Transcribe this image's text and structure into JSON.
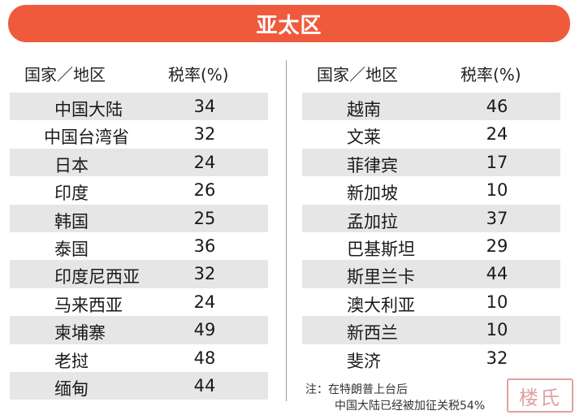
{
  "banner": {
    "title": "亚太区"
  },
  "table_headers": {
    "country": "国家／地区",
    "rate": "税率(%)"
  },
  "left_rows": [
    {
      "country": "中国大陆",
      "rate": "34"
    },
    {
      "country": "中国台湾省",
      "rate": "32"
    },
    {
      "country": "日本",
      "rate": "24"
    },
    {
      "country": "印度",
      "rate": "26"
    },
    {
      "country": "韩国",
      "rate": "25"
    },
    {
      "country": "泰国",
      "rate": "36"
    },
    {
      "country": "印度尼西亚",
      "rate": "32"
    },
    {
      "country": "马来西亚",
      "rate": "24"
    },
    {
      "country": "柬埔寨",
      "rate": "49"
    },
    {
      "country": "老挝",
      "rate": "48"
    },
    {
      "country": "缅甸",
      "rate": "44"
    }
  ],
  "right_rows": [
    {
      "country": "越南",
      "rate": "46"
    },
    {
      "country": "文莱",
      "rate": "24"
    },
    {
      "country": "菲律宾",
      "rate": "17"
    },
    {
      "country": "新加坡",
      "rate": "10"
    },
    {
      "country": "孟加拉",
      "rate": "37"
    },
    {
      "country": "巴基斯坦",
      "rate": "29"
    },
    {
      "country": "斯里兰卡",
      "rate": "44"
    },
    {
      "country": "澳大利亚",
      "rate": "10"
    },
    {
      "country": "新西兰",
      "rate": "10"
    },
    {
      "country": "斐济",
      "rate": "32"
    }
  ],
  "note": {
    "line1": "注：在特朗普上台后",
    "line2": "中国大陆已经被加征关税54%"
  },
  "watermark": {
    "text": "楼氏",
    "color": "#d98a8a"
  },
  "colors": {
    "banner": "#f05a3c",
    "row_shade": "#e6e6e6"
  }
}
